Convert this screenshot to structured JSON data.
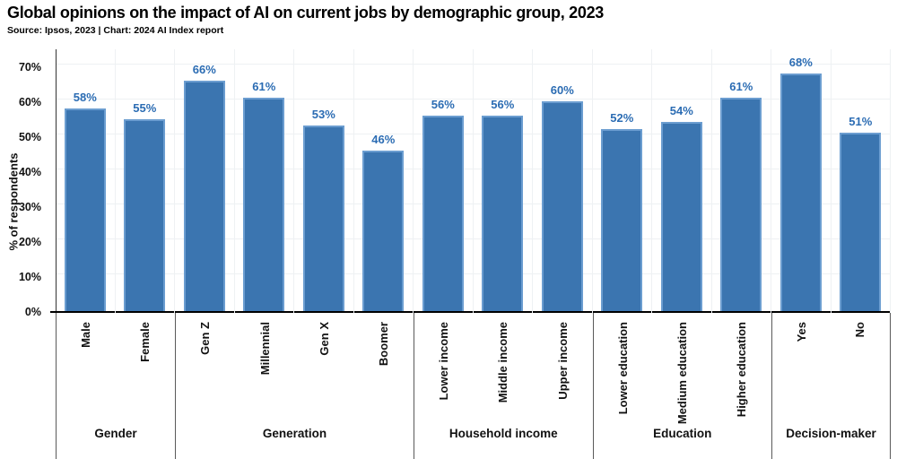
{
  "chart_data": {
    "type": "bar",
    "title": "Global opinions on the impact of AI on current jobs by demographic group, 2023",
    "source": "Source: Ipsos, 2023 | Chart: 2024 AI Index report",
    "ylabel": "% of respondents",
    "xlabel": "",
    "ylim": [
      0,
      70
    ],
    "yticks": [
      0,
      10,
      20,
      30,
      40,
      50,
      60,
      70
    ],
    "ytick_suffix": "%",
    "grid": "faint horizontal and vertical gridlines on",
    "legend": "none",
    "value_suffix": "%",
    "groups": [
      {
        "label": "Gender",
        "bars": [
          {
            "label": "Male",
            "value": 58
          },
          {
            "label": "Female",
            "value": 55
          }
        ]
      },
      {
        "label": "Generation",
        "bars": [
          {
            "label": "Gen Z",
            "value": 66
          },
          {
            "label": "Millennial",
            "value": 61
          },
          {
            "label": "Gen X",
            "value": 53
          },
          {
            "label": "Boomer",
            "value": 46
          }
        ]
      },
      {
        "label": "Household income",
        "bars": [
          {
            "label": "Lower income",
            "value": 56
          },
          {
            "label": "Middle income",
            "value": 56
          },
          {
            "label": "Upper income",
            "value": 60
          }
        ]
      },
      {
        "label": "Education",
        "bars": [
          {
            "label": "Lower education",
            "value": 52
          },
          {
            "label": "Medium education",
            "value": 54
          },
          {
            "label": "Higher education",
            "value": 61
          }
        ]
      },
      {
        "label": "Decision-maker",
        "bars": [
          {
            "label": "Yes",
            "value": 68
          },
          {
            "label": "No",
            "value": 51
          }
        ]
      }
    ],
    "colors": {
      "bar_fill": "#3B75B0",
      "bar_edge": "#6B9DD0",
      "value_label": "#2B6CB3",
      "axis_line": "#333333",
      "baseline": "#000000",
      "gridline": "#EEF1F3",
      "separator": "#5a5a5a"
    }
  }
}
